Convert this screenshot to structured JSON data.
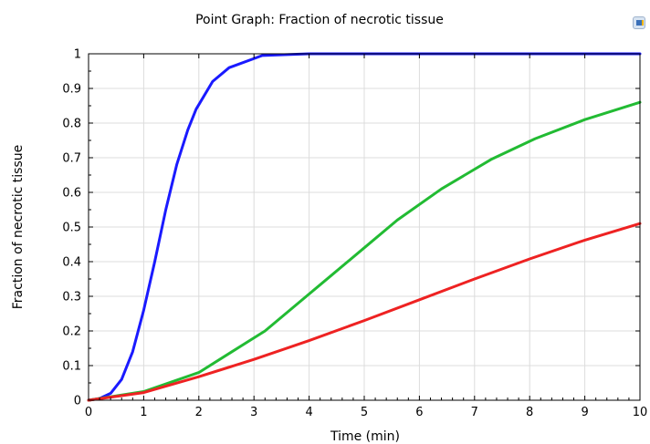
{
  "chart_data": {
    "type": "line",
    "title": "Point Graph: Fraction of necrotic tissue",
    "xlabel": "Time (min)",
    "ylabel": "Fraction of necrotic tissue",
    "xlim": [
      0,
      10
    ],
    "ylim": [
      0,
      1
    ],
    "xticks": [
      0,
      1,
      2,
      3,
      4,
      5,
      6,
      7,
      8,
      9,
      10
    ],
    "yticks": [
      0,
      0.1,
      0.2,
      0.3,
      0.4,
      0.5,
      0.6,
      0.7,
      0.8,
      0.9,
      1
    ],
    "ytick_labels": [
      "0",
      "0.1",
      "0.2",
      "0.3",
      "0.4",
      "0.5",
      "0.6",
      "0.7",
      "0.8",
      "0.9",
      "1"
    ],
    "xtick_labels": [
      "0",
      "1",
      "2",
      "3",
      "4",
      "5",
      "6",
      "7",
      "8",
      "9",
      "10"
    ],
    "grid": true,
    "series": [
      {
        "color": "#1a1aff",
        "x": [
          0,
          0.2,
          0.4,
          0.6,
          0.8,
          1.0,
          1.2,
          1.4,
          1.6,
          1.8,
          1.95,
          2.25,
          2.55,
          3.15,
          4,
          5,
          6,
          7,
          8,
          9,
          10
        ],
        "y": [
          0,
          0.005,
          0.02,
          0.06,
          0.14,
          0.26,
          0.4,
          0.55,
          0.68,
          0.78,
          0.84,
          0.92,
          0.96,
          0.995,
          1,
          1,
          1,
          1,
          1,
          1,
          1
        ]
      },
      {
        "color": "#22bb33",
        "x": [
          0,
          1,
          2,
          2.6,
          3.2,
          3.8,
          4.4,
          5,
          5.6,
          6.4,
          7.3,
          8.1,
          9,
          10
        ],
        "y": [
          0,
          0.025,
          0.08,
          0.14,
          0.2,
          0.28,
          0.36,
          0.44,
          0.52,
          0.61,
          0.695,
          0.755,
          0.81,
          0.86
        ]
      },
      {
        "color": "#ee2222",
        "x": [
          0,
          1,
          2,
          3,
          4,
          5,
          6,
          7,
          8,
          9,
          10
        ],
        "y": [
          0,
          0.022,
          0.068,
          0.118,
          0.172,
          0.23,
          0.29,
          0.35,
          0.408,
          0.462,
          0.51
        ]
      }
    ]
  }
}
